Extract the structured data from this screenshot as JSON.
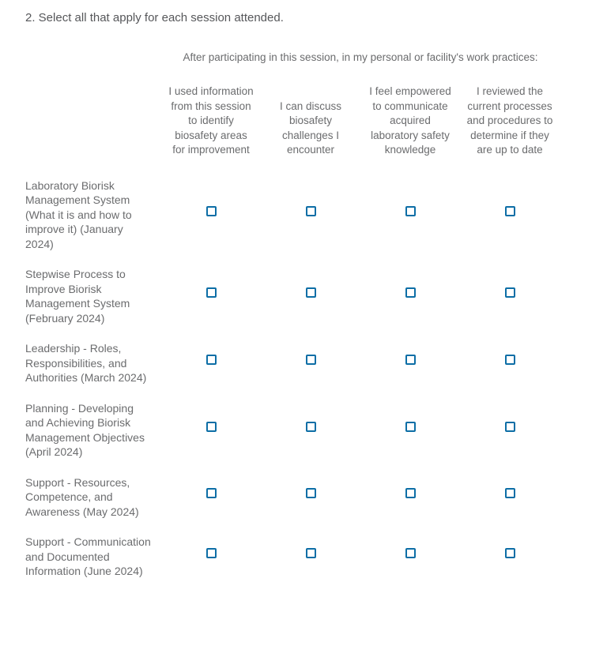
{
  "question": {
    "title": "2. Select all that apply for each session attended."
  },
  "matrix": {
    "group_header": "After participating in this session, in my personal or facility's work practices:",
    "columns": [
      "I used information from this session to identify biosafety areas for improvement",
      "I can discuss biosafety challenges I encounter",
      "I feel empowered to communicate acquired laboratory safety knowledge",
      "I reviewed the current processes and procedures to determine if they are up to date"
    ],
    "rows": [
      {
        "label": "Laboratory Biorisk Management System (What it is and how to improve it) (January 2024)",
        "checked": [
          false,
          false,
          false,
          false
        ]
      },
      {
        "label": "Stepwise Process to Improve Biorisk Management System (February 2024)",
        "checked": [
          false,
          false,
          false,
          false
        ]
      },
      {
        "label": "Leadership - Roles, Responsibilities, and Authorities (March 2024)",
        "checked": [
          false,
          false,
          false,
          false
        ]
      },
      {
        "label": "Planning - Developing and Achieving Biorisk Management Objectives (April 2024)",
        "checked": [
          false,
          false,
          false,
          false
        ]
      },
      {
        "label": "Support - Resources, Competence, and Awareness (May 2024)",
        "checked": [
          false,
          false,
          false,
          false
        ]
      },
      {
        "label": "Support - Communication and Documented Information (June 2024)",
        "checked": [
          false,
          false,
          false,
          false
        ]
      }
    ]
  },
  "colors": {
    "checkbox_border": "#0d6ea6",
    "title_text": "#56575a",
    "body_text": "#6b6c6e",
    "background": "#ffffff"
  }
}
